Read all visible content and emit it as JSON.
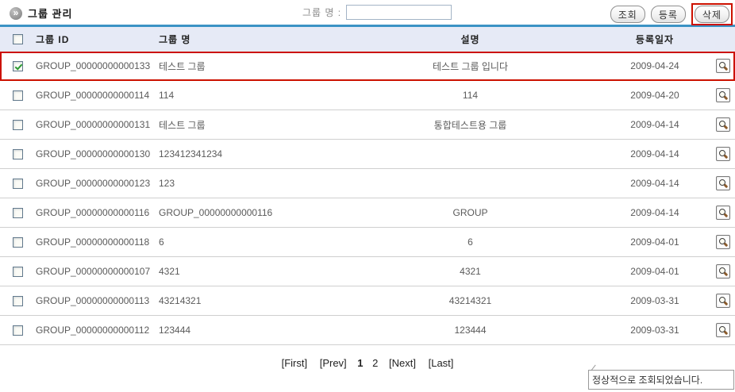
{
  "page": {
    "title": "그룹 관리"
  },
  "icons": {
    "title_badge_glyph": "»"
  },
  "toolbar": {
    "search_label": "그룹 명 :",
    "search_value": "",
    "buttons": {
      "search": "조회",
      "register": "등록",
      "delete": "삭제"
    }
  },
  "table": {
    "headers": {
      "id": "그룹 ID",
      "name": "그룹 명",
      "desc": "설명",
      "date": "등록일자"
    },
    "rows": [
      {
        "checked": true,
        "highlighted": true,
        "id": "GROUP_00000000000133",
        "name": "테스트 그룹",
        "desc": "테스트 그룹 입니다",
        "date": "2009-04-24"
      },
      {
        "checked": false,
        "highlighted": false,
        "id": "GROUP_00000000000114",
        "name": "114",
        "desc": "114",
        "date": "2009-04-20"
      },
      {
        "checked": false,
        "highlighted": false,
        "id": "GROUP_00000000000131",
        "name": "테스트 그룹",
        "desc": "통합테스트용 그룹",
        "date": "2009-04-14"
      },
      {
        "checked": false,
        "highlighted": false,
        "id": "GROUP_00000000000130",
        "name": "123412341234",
        "desc": "",
        "date": "2009-04-14"
      },
      {
        "checked": false,
        "highlighted": false,
        "id": "GROUP_00000000000123",
        "name": "123",
        "desc": "",
        "date": "2009-04-14"
      },
      {
        "checked": false,
        "highlighted": false,
        "id": "GROUP_00000000000116",
        "name": "GROUP_00000000000116",
        "desc": "GROUP",
        "date": "2009-04-14"
      },
      {
        "checked": false,
        "highlighted": false,
        "id": "GROUP_00000000000118",
        "name": "6",
        "desc": "6",
        "date": "2009-04-01"
      },
      {
        "checked": false,
        "highlighted": false,
        "id": "GROUP_00000000000107",
        "name": "4321",
        "desc": "4321",
        "date": "2009-04-01"
      },
      {
        "checked": false,
        "highlighted": false,
        "id": "GROUP_00000000000113",
        "name": "43214321",
        "desc": "43214321",
        "date": "2009-03-31"
      },
      {
        "checked": false,
        "highlighted": false,
        "id": "GROUP_00000000000112",
        "name": "123444",
        "desc": "123444",
        "date": "2009-03-31"
      }
    ]
  },
  "pagination": {
    "first": "[First]",
    "prev": "[Prev]",
    "page1": "1",
    "page2": "2",
    "next": "[Next]",
    "last": "[Last]",
    "current_page": "1"
  },
  "status_message": "정상적으로 조회되었습니다.",
  "colors": {
    "accent_blue": "#3b93c5",
    "header_bg": "#e6eaf6",
    "annotation_red": "#cc1100",
    "check_green": "#2c9a33"
  }
}
